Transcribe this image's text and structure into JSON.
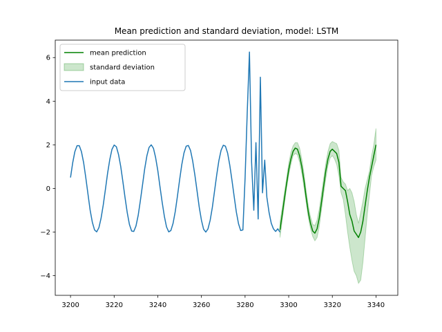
{
  "chart_data": {
    "type": "line",
    "title": "Mean prediction and standard deviation, model: LSTM",
    "xlabel": "",
    "ylabel": "",
    "xlim": [
      3193,
      3350
    ],
    "ylim": [
      -4.9,
      6.8
    ],
    "x_ticks": [
      3200,
      3220,
      3240,
      3260,
      3280,
      3300,
      3320,
      3340
    ],
    "y_ticks": [
      -4,
      -2,
      0,
      2,
      4,
      6
    ],
    "grid": false,
    "legend_position": "top-left",
    "colors": {
      "mean": "#008000",
      "std_fill": "#008000",
      "input": "#1f77b4"
    },
    "series": [
      {
        "name": "input data",
        "color": "#1f77b4",
        "x": [
          3200,
          3201,
          3202,
          3203,
          3204,
          3205,
          3206,
          3207,
          3208,
          3209,
          3210,
          3211,
          3212,
          3213,
          3214,
          3215,
          3216,
          3217,
          3218,
          3219,
          3220,
          3221,
          3222,
          3223,
          3224,
          3225,
          3226,
          3227,
          3228,
          3229,
          3230,
          3231,
          3232,
          3233,
          3234,
          3235,
          3236,
          3237,
          3238,
          3239,
          3240,
          3241,
          3242,
          3243,
          3244,
          3245,
          3246,
          3247,
          3248,
          3249,
          3250,
          3251,
          3252,
          3253,
          3254,
          3255,
          3256,
          3257,
          3258,
          3259,
          3260,
          3261,
          3262,
          3263,
          3264,
          3265,
          3266,
          3267,
          3268,
          3269,
          3270,
          3271,
          3272,
          3273,
          3274,
          3275,
          3276,
          3277,
          3278,
          3279,
          3280,
          3281,
          3282,
          3283,
          3284,
          3285,
          3286,
          3287,
          3288,
          3289,
          3290,
          3291,
          3292,
          3293,
          3294,
          3295,
          3296
        ],
        "y": [
          0.5,
          1.18,
          1.69,
          1.96,
          1.96,
          1.69,
          1.18,
          0.5,
          -0.26,
          -0.99,
          -1.55,
          -1.9,
          -1.99,
          -1.8,
          -1.37,
          -0.76,
          -0.03,
          0.7,
          1.33,
          1.79,
          1.99,
          1.91,
          1.56,
          1.01,
          0.32,
          -0.43,
          -1.12,
          -1.65,
          -1.95,
          -1.97,
          -1.72,
          -1.23,
          -0.57,
          0.17,
          0.9,
          1.5,
          1.88,
          2.0,
          1.84,
          1.42,
          0.82,
          0.09,
          -0.63,
          -1.28,
          -1.76,
          -1.99,
          -1.93,
          -1.6,
          -1.05,
          -0.36,
          0.4,
          1.09,
          1.63,
          1.94,
          1.97,
          1.74,
          1.26,
          0.61,
          -0.13,
          -0.86,
          -1.46,
          -1.87,
          -2.0,
          -1.86,
          -1.46,
          -0.86,
          -0.13,
          0.62,
          1.27,
          1.75,
          1.98,
          1.94,
          1.62,
          1.07,
          0.37,
          -0.38,
          -1.08,
          -1.62,
          -1.93,
          -1.9,
          0.5,
          3.5,
          6.25,
          1.2,
          -1.0,
          2.1,
          -1.4,
          5.1,
          -0.2,
          1.3,
          -0.4,
          -1.1,
          -1.6,
          -1.85,
          -1.97,
          -1.85,
          -2.0
        ]
      },
      {
        "name": "mean prediction",
        "color": "#008000",
        "x": [
          3296,
          3297,
          3298,
          3299,
          3300,
          3301,
          3302,
          3303,
          3304,
          3305,
          3306,
          3307,
          3308,
          3309,
          3310,
          3311,
          3312,
          3313,
          3314,
          3315,
          3316,
          3317,
          3318,
          3319,
          3320,
          3321,
          3322,
          3323,
          3324,
          3325,
          3326,
          3327,
          3328,
          3329,
          3330,
          3331,
          3332,
          3333,
          3334,
          3335,
          3336,
          3337,
          3338,
          3339,
          3340,
          3341,
          3342,
          3343
        ],
        "y": [
          -1.9,
          -1.2,
          -0.5,
          0.2,
          0.85,
          1.35,
          1.7,
          1.85,
          1.8,
          1.5,
          1.0,
          0.35,
          -0.4,
          -1.1,
          -1.6,
          -1.95,
          -2.05,
          -1.85,
          -1.35,
          -0.65,
          0.1,
          0.8,
          1.35,
          1.7,
          1.8,
          1.7,
          1.6,
          1.2,
          0.1,
          0.0,
          -0.1,
          -0.6,
          -1.2,
          -1.5,
          -1.95,
          -2.1,
          -2.25,
          -2.0,
          -1.5,
          -0.8,
          -0.1,
          0.5,
          1.0,
          1.5,
          2.0,
          null,
          null,
          null
        ]
      }
    ],
    "std_band": {
      "name": "standard deviation",
      "color": "#008000",
      "opacity": 0.2,
      "x": [
        3296,
        3297,
        3298,
        3299,
        3300,
        3301,
        3302,
        3303,
        3304,
        3305,
        3306,
        3307,
        3308,
        3309,
        3310,
        3311,
        3312,
        3313,
        3314,
        3315,
        3316,
        3317,
        3318,
        3319,
        3320,
        3321,
        3322,
        3323,
        3324,
        3325,
        3326,
        3327,
        3328,
        3329,
        3330,
        3331,
        3332,
        3333,
        3334,
        3335,
        3336,
        3337,
        3338,
        3339,
        3340,
        3341,
        3342,
        3343
      ],
      "lower": [
        -2.25,
        -1.5,
        -0.75,
        0.0,
        0.6,
        1.1,
        1.5,
        1.6,
        1.55,
        1.2,
        0.7,
        0.05,
        -0.65,
        -1.35,
        -1.85,
        -2.2,
        -2.4,
        -2.25,
        -1.75,
        -1.0,
        -0.25,
        0.45,
        1.05,
        1.4,
        1.5,
        1.35,
        1.1,
        0.6,
        -0.2,
        -0.5,
        -1.2,
        -2.0,
        -2.7,
        -3.3,
        -3.8,
        -4.0,
        -4.35,
        -4.2,
        -3.4,
        -2.3,
        -1.2,
        -0.3,
        0.6,
        1.0,
        1.3,
        null,
        null,
        null
      ],
      "upper": [
        -1.55,
        -0.9,
        -0.2,
        0.45,
        1.15,
        1.65,
        1.95,
        2.1,
        2.1,
        1.85,
        1.35,
        0.7,
        -0.1,
        -0.8,
        -1.3,
        -1.65,
        -1.7,
        -1.45,
        -0.95,
        -0.25,
        0.45,
        1.15,
        1.7,
        2.05,
        2.15,
        2.1,
        2.05,
        1.75,
        0.5,
        0.3,
        0.2,
        -0.1,
        0.0,
        -0.2,
        -0.6,
        -1.2,
        -1.6,
        -1.1,
        -0.6,
        0.0,
        0.4,
        0.8,
        1.5,
        2.0,
        2.75,
        null,
        null,
        null
      ]
    }
  },
  "legend": {
    "items": [
      {
        "label": "mean prediction",
        "kind": "line",
        "color": "#008000"
      },
      {
        "label": "standard deviation",
        "kind": "patch",
        "color": "#008000"
      },
      {
        "label": "input data",
        "kind": "line",
        "color": "#1f77b4"
      }
    ]
  }
}
